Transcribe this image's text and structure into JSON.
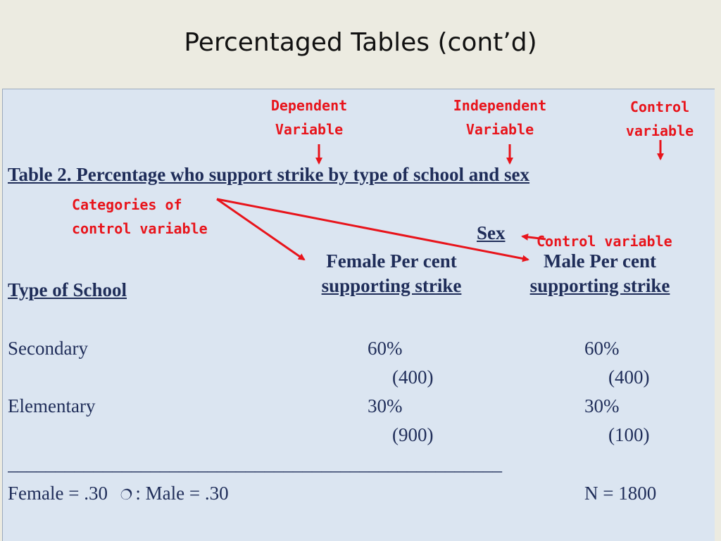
{
  "slide": {
    "title": "Percentaged Tables (cont’d)"
  },
  "annotations": {
    "dependent": [
      "Dependent",
      "Variable"
    ],
    "independent": [
      "Independent",
      "Variable"
    ],
    "control": [
      "Control",
      "variable"
    ],
    "categories": [
      "Categories of",
      "control variable"
    ],
    "control_right": "Control variable"
  },
  "table": {
    "caption": "Table 2.  Percentage who support strike by type of school and sex",
    "sex_header": "Sex",
    "row_header": "Type of School",
    "col_female": [
      "Female Per cent",
      "supporting strike"
    ],
    "col_male": [
      "Male Per cent",
      "supporting strike"
    ],
    "rows": [
      {
        "label": "Secondary",
        "female_pct": "60%",
        "female_n": "(400)",
        "male_pct": "60%",
        "male_n": "(400)"
      },
      {
        "label": "Elementary",
        "female_pct": "30%",
        "female_n": "(900)",
        "male_pct": "30%",
        "male_n": "(100)"
      }
    ],
    "rule": "____________________________________________________",
    "footer": {
      "female": "Female = .30",
      "male": ": Male = .30",
      "n": "N = 1800"
    }
  },
  "colors": {
    "annotation": "#e8141b",
    "text": "#1f2d59",
    "panel": "#dbe5f1"
  },
  "icons": {
    "footer_symbol": "mailbox-icon"
  }
}
